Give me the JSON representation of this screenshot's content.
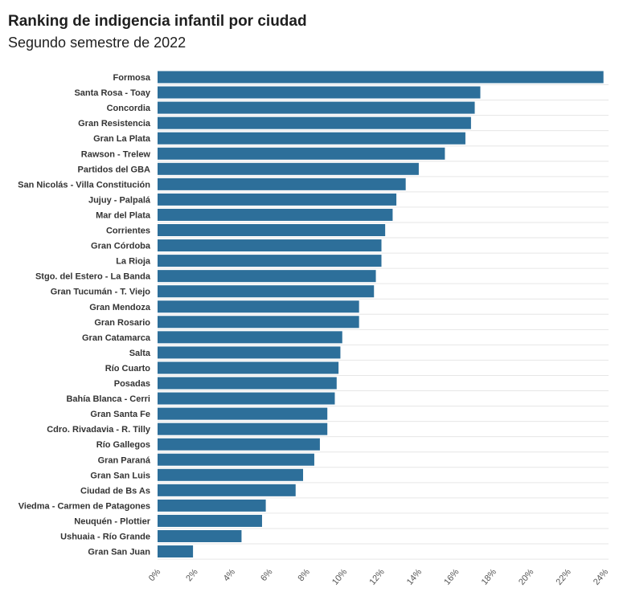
{
  "chart_data": {
    "type": "bar",
    "orientation": "horizontal",
    "title": "Ranking de indigencia infantil por ciudad",
    "subtitle": "Segundo semestre de 2022",
    "categories": [
      "Formosa",
      "Santa Rosa - Toay",
      "Concordia",
      "Gran Resistencia",
      "Gran La Plata",
      "Rawson - Trelew",
      "Partidos del GBA",
      "San Nicolás - Villa Constitución",
      "Jujuy - Palpalá",
      "Mar del Plata",
      "Corrientes",
      "Gran Córdoba",
      "La Rioja",
      "Stgo. del Estero - La Banda",
      "Gran Tucumán - T. Viejo",
      "Gran Mendoza",
      "Gran Rosario",
      "Gran Catamarca",
      "Salta",
      "Río Cuarto",
      "Posadas",
      "Bahía Blanca - Cerri",
      "Gran Santa Fe",
      "Cdro. Rivadavia - R. Tilly",
      "Río Gallegos",
      "Gran Paraná",
      "Gran San Luis",
      "Ciudad de Bs As",
      "Viedma - Carmen de Patagones",
      "Neuquén - Plottier",
      "Ushuaia - Río Grande",
      "Gran San Juan"
    ],
    "values": [
      23.9,
      17.3,
      17.0,
      16.8,
      16.5,
      15.4,
      14.0,
      13.3,
      12.8,
      12.6,
      12.2,
      12.0,
      12.0,
      11.7,
      11.6,
      10.8,
      10.8,
      9.9,
      9.8,
      9.7,
      9.6,
      9.5,
      9.1,
      9.1,
      8.7,
      8.4,
      7.8,
      7.4,
      5.8,
      5.6,
      4.5,
      1.9
    ],
    "xlim": [
      0,
      24
    ],
    "xticks": [
      "0%",
      "2%",
      "4%",
      "6%",
      "8%",
      "10%",
      "12%",
      "14%",
      "16%",
      "18%",
      "20%",
      "22%",
      "24%"
    ],
    "bar_color": "#2d6f9a",
    "grid": "horizontal-row-lines"
  }
}
